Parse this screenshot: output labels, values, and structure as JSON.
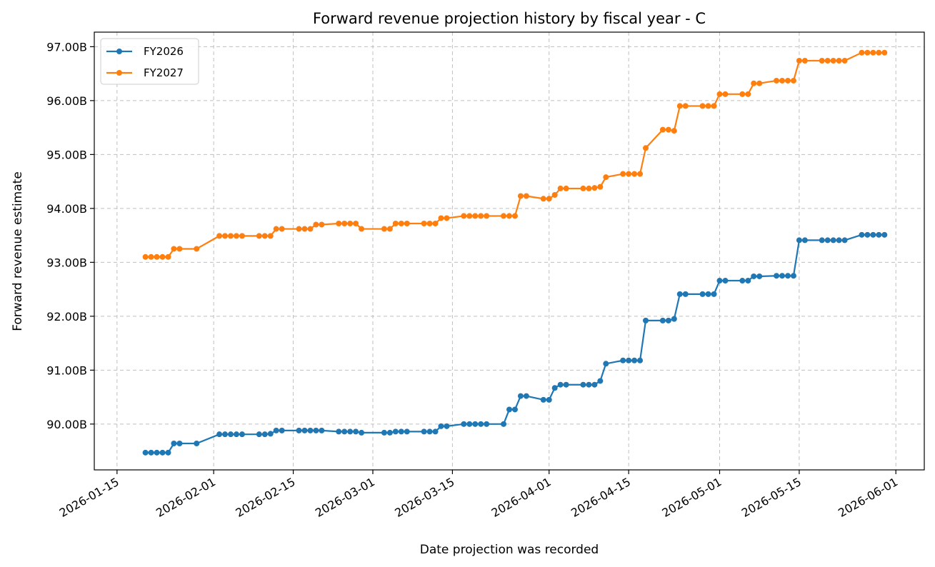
{
  "chart_data": {
    "type": "line",
    "title": "Forward revenue projection history by fiscal year - C",
    "xlabel": "Date projection was recorded",
    "ylabel": "Forward revenue estimate",
    "x_ticks": [
      "2026-01-15",
      "2026-02-01",
      "2026-02-15",
      "2026-03-01",
      "2026-03-15",
      "2026-04-01",
      "2026-04-15",
      "2026-05-01",
      "2026-05-15",
      "2026-06-01"
    ],
    "y_ticks": [
      "90.00B",
      "91.00B",
      "92.00B",
      "93.00B",
      "94.00B",
      "95.00B",
      "96.00B",
      "97.00B"
    ],
    "xlim": [
      "2026-01-11",
      "2026-06-06"
    ],
    "ylim": [
      89.15,
      97.27
    ],
    "grid": true,
    "legend_position": "top-left",
    "series": [
      {
        "name": "FY2026",
        "color": "#1f77b4",
        "points": [
          [
            "2026-01-20",
            89.47
          ],
          [
            "2026-01-21",
            89.47
          ],
          [
            "2026-01-22",
            89.47
          ],
          [
            "2026-01-23",
            89.47
          ],
          [
            "2026-01-24",
            89.47
          ],
          [
            "2026-01-25",
            89.64
          ],
          [
            "2026-01-26",
            89.64
          ],
          [
            "2026-01-29",
            89.64
          ],
          [
            "2026-02-02",
            89.81
          ],
          [
            "2026-02-03",
            89.81
          ],
          [
            "2026-02-04",
            89.81
          ],
          [
            "2026-02-05",
            89.81
          ],
          [
            "2026-02-06",
            89.81
          ],
          [
            "2026-02-09",
            89.81
          ],
          [
            "2026-02-10",
            89.81
          ],
          [
            "2026-02-11",
            89.82
          ],
          [
            "2026-02-12",
            89.88
          ],
          [
            "2026-02-13",
            89.88
          ],
          [
            "2026-02-16",
            89.88
          ],
          [
            "2026-02-17",
            89.88
          ],
          [
            "2026-02-18",
            89.88
          ],
          [
            "2026-02-19",
            89.88
          ],
          [
            "2026-02-20",
            89.88
          ],
          [
            "2026-02-23",
            89.86
          ],
          [
            "2026-02-24",
            89.86
          ],
          [
            "2026-02-25",
            89.86
          ],
          [
            "2026-02-26",
            89.86
          ],
          [
            "2026-02-27",
            89.84
          ],
          [
            "2026-03-03",
            89.84
          ],
          [
            "2026-03-04",
            89.84
          ],
          [
            "2026-03-05",
            89.86
          ],
          [
            "2026-03-06",
            89.86
          ],
          [
            "2026-03-07",
            89.86
          ],
          [
            "2026-03-10",
            89.86
          ],
          [
            "2026-03-11",
            89.86
          ],
          [
            "2026-03-12",
            89.86
          ],
          [
            "2026-03-13",
            89.96
          ],
          [
            "2026-03-14",
            89.96
          ],
          [
            "2026-03-17",
            90.0
          ],
          [
            "2026-03-18",
            90.0
          ],
          [
            "2026-03-19",
            90.0
          ],
          [
            "2026-03-20",
            90.0
          ],
          [
            "2026-03-21",
            90.0
          ],
          [
            "2026-03-24",
            90.0
          ],
          [
            "2026-03-25",
            90.27
          ],
          [
            "2026-03-26",
            90.27
          ],
          [
            "2026-03-27",
            90.52
          ],
          [
            "2026-03-28",
            90.52
          ],
          [
            "2026-03-31",
            90.45
          ],
          [
            "2026-04-01",
            90.45
          ],
          [
            "2026-04-02",
            90.67
          ],
          [
            "2026-04-03",
            90.73
          ],
          [
            "2026-04-04",
            90.73
          ],
          [
            "2026-04-07",
            90.73
          ],
          [
            "2026-04-08",
            90.73
          ],
          [
            "2026-04-09",
            90.73
          ],
          [
            "2026-04-10",
            90.8
          ],
          [
            "2026-04-11",
            91.12
          ],
          [
            "2026-04-14",
            91.18
          ],
          [
            "2026-04-15",
            91.18
          ],
          [
            "2026-04-16",
            91.18
          ],
          [
            "2026-04-17",
            91.18
          ],
          [
            "2026-04-18",
            91.92
          ],
          [
            "2026-04-21",
            91.92
          ],
          [
            "2026-04-22",
            91.92
          ],
          [
            "2026-04-23",
            91.95
          ],
          [
            "2026-04-24",
            92.41
          ],
          [
            "2026-04-25",
            92.41
          ],
          [
            "2026-04-28",
            92.41
          ],
          [
            "2026-04-29",
            92.41
          ],
          [
            "2026-04-30",
            92.41
          ],
          [
            "2026-05-01",
            92.66
          ],
          [
            "2026-05-02",
            92.66
          ],
          [
            "2026-05-05",
            92.66
          ],
          [
            "2026-05-06",
            92.66
          ],
          [
            "2026-05-07",
            92.74
          ],
          [
            "2026-05-08",
            92.74
          ],
          [
            "2026-05-11",
            92.75
          ],
          [
            "2026-05-12",
            92.75
          ],
          [
            "2026-05-13",
            92.75
          ],
          [
            "2026-05-14",
            92.75
          ],
          [
            "2026-05-15",
            93.41
          ],
          [
            "2026-05-16",
            93.41
          ],
          [
            "2026-05-19",
            93.41
          ],
          [
            "2026-05-20",
            93.41
          ],
          [
            "2026-05-21",
            93.41
          ],
          [
            "2026-05-22",
            93.41
          ],
          [
            "2026-05-23",
            93.41
          ],
          [
            "2026-05-26",
            93.51
          ],
          [
            "2026-05-27",
            93.51
          ],
          [
            "2026-05-28",
            93.51
          ],
          [
            "2026-05-29",
            93.51
          ],
          [
            "2026-05-30",
            93.51
          ]
        ]
      },
      {
        "name": "FY2027",
        "color": "#ff7f0e",
        "points": [
          [
            "2026-01-20",
            93.1
          ],
          [
            "2026-01-21",
            93.1
          ],
          [
            "2026-01-22",
            93.1
          ],
          [
            "2026-01-23",
            93.1
          ],
          [
            "2026-01-24",
            93.1
          ],
          [
            "2026-01-25",
            93.25
          ],
          [
            "2026-01-26",
            93.25
          ],
          [
            "2026-01-29",
            93.25
          ],
          [
            "2026-02-02",
            93.49
          ],
          [
            "2026-02-03",
            93.49
          ],
          [
            "2026-02-04",
            93.49
          ],
          [
            "2026-02-05",
            93.49
          ],
          [
            "2026-02-06",
            93.49
          ],
          [
            "2026-02-09",
            93.49
          ],
          [
            "2026-02-10",
            93.49
          ],
          [
            "2026-02-11",
            93.49
          ],
          [
            "2026-02-12",
            93.62
          ],
          [
            "2026-02-13",
            93.62
          ],
          [
            "2026-02-16",
            93.62
          ],
          [
            "2026-02-17",
            93.62
          ],
          [
            "2026-02-18",
            93.62
          ],
          [
            "2026-02-19",
            93.7
          ],
          [
            "2026-02-20",
            93.7
          ],
          [
            "2026-02-23",
            93.72
          ],
          [
            "2026-02-24",
            93.72
          ],
          [
            "2026-02-25",
            93.72
          ],
          [
            "2026-02-26",
            93.72
          ],
          [
            "2026-02-27",
            93.62
          ],
          [
            "2026-03-03",
            93.62
          ],
          [
            "2026-03-04",
            93.62
          ],
          [
            "2026-03-05",
            93.72
          ],
          [
            "2026-03-06",
            93.72
          ],
          [
            "2026-03-07",
            93.72
          ],
          [
            "2026-03-10",
            93.72
          ],
          [
            "2026-03-11",
            93.72
          ],
          [
            "2026-03-12",
            93.72
          ],
          [
            "2026-03-13",
            93.82
          ],
          [
            "2026-03-14",
            93.82
          ],
          [
            "2026-03-17",
            93.86
          ],
          [
            "2026-03-18",
            93.86
          ],
          [
            "2026-03-19",
            93.86
          ],
          [
            "2026-03-20",
            93.86
          ],
          [
            "2026-03-21",
            93.86
          ],
          [
            "2026-03-24",
            93.86
          ],
          [
            "2026-03-25",
            93.86
          ],
          [
            "2026-03-26",
            93.86
          ],
          [
            "2026-03-27",
            94.23
          ],
          [
            "2026-03-28",
            94.23
          ],
          [
            "2026-03-31",
            94.18
          ],
          [
            "2026-04-01",
            94.18
          ],
          [
            "2026-04-02",
            94.25
          ],
          [
            "2026-04-03",
            94.37
          ],
          [
            "2026-04-04",
            94.37
          ],
          [
            "2026-04-07",
            94.37
          ],
          [
            "2026-04-08",
            94.37
          ],
          [
            "2026-04-09",
            94.38
          ],
          [
            "2026-04-10",
            94.4
          ],
          [
            "2026-04-11",
            94.58
          ],
          [
            "2026-04-14",
            94.64
          ],
          [
            "2026-04-15",
            94.64
          ],
          [
            "2026-04-16",
            94.64
          ],
          [
            "2026-04-17",
            94.64
          ],
          [
            "2026-04-18",
            95.12
          ],
          [
            "2026-04-21",
            95.46
          ],
          [
            "2026-04-22",
            95.46
          ],
          [
            "2026-04-23",
            95.44
          ],
          [
            "2026-04-24",
            95.9
          ],
          [
            "2026-04-25",
            95.9
          ],
          [
            "2026-04-28",
            95.9
          ],
          [
            "2026-04-29",
            95.9
          ],
          [
            "2026-04-30",
            95.9
          ],
          [
            "2026-05-01",
            96.12
          ],
          [
            "2026-05-02",
            96.12
          ],
          [
            "2026-05-05",
            96.12
          ],
          [
            "2026-05-06",
            96.12
          ],
          [
            "2026-05-07",
            96.32
          ],
          [
            "2026-05-08",
            96.32
          ],
          [
            "2026-05-11",
            96.37
          ],
          [
            "2026-05-12",
            96.37
          ],
          [
            "2026-05-13",
            96.37
          ],
          [
            "2026-05-14",
            96.37
          ],
          [
            "2026-05-15",
            96.74
          ],
          [
            "2026-05-16",
            96.74
          ],
          [
            "2026-05-19",
            96.74
          ],
          [
            "2026-05-20",
            96.74
          ],
          [
            "2026-05-21",
            96.74
          ],
          [
            "2026-05-22",
            96.74
          ],
          [
            "2026-05-23",
            96.74
          ],
          [
            "2026-05-26",
            96.89
          ],
          [
            "2026-05-27",
            96.89
          ],
          [
            "2026-05-28",
            96.89
          ],
          [
            "2026-05-29",
            96.89
          ],
          [
            "2026-05-30",
            96.89
          ]
        ]
      }
    ]
  }
}
